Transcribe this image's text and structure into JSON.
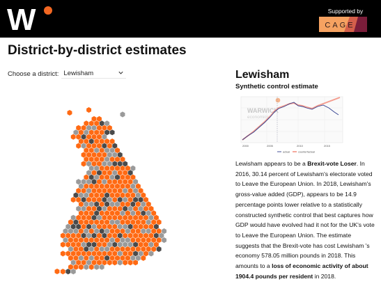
{
  "header": {
    "logo_letter": "W",
    "supported_by": "Supported by",
    "partner_logo": "CAGE",
    "brand_orange": "#f26722",
    "cage_colors": [
      "#f6a261",
      "#d45f4b",
      "#7a1d3a"
    ]
  },
  "page_title": "District-by-district estimates",
  "chooser": {
    "label": "Choose a district:",
    "selected": "Lewisham",
    "icon": "chevron-down-icon"
  },
  "map": {
    "colors": {
      "loser": "#ff6a13",
      "neutral": "#9a9a9a",
      "dark": "#4a4a4a"
    }
  },
  "district": {
    "name": "Lewisham",
    "subtitle": "Synthetic control estimate",
    "chart_watermark": "WARWICK",
    "chart_watermark_sub": "economics",
    "chart_legend": [
      "actual",
      "counterfactual"
    ],
    "chart_years": [
      "2000",
      "2005",
      "2010",
      "2015"
    ],
    "desc_p1": "Lewisham appears to be a ",
    "desc_b1": "Brexit-vote Loser",
    "desc_p2": ". In 2016, 30.14 percent of Lewisham's electorate voted to Leave the European Union. In 2018, Lewisham's gross-value added (GDP), appears to be 14.9 percentage points lower relative to a statistically constructed synthetic control that best captures how GDP would have evolved had it not for the UK's vote to Leave the European Union. The estimate suggests that the Brexit-vote has cost Lewisham 's economy 578.05 million pounds in 2018. This amounts to a ",
    "desc_b2": "loss of economic activity of about 1904.4 pounds per resident",
    "desc_p3": " in 2018."
  }
}
